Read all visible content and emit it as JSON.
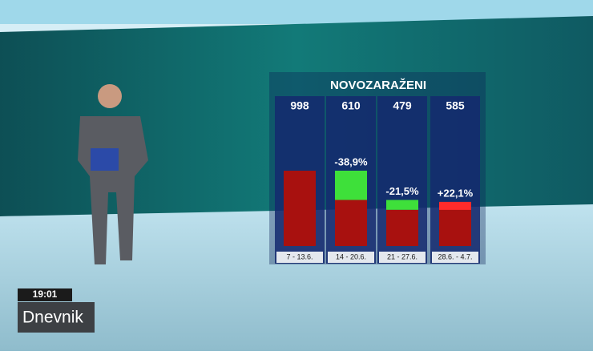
{
  "chart_data": {
    "type": "bar",
    "title": "NOVOZARAŽENI",
    "categories": [
      "7 - 13.6.",
      "14 - 20.6.",
      "21 - 27.6.",
      "28.6. - 4.7."
    ],
    "values": [
      998,
      610,
      479,
      585
    ],
    "changes": [
      null,
      -38.9,
      -21.5,
      22.1
    ],
    "change_labels": [
      null,
      "-38,9%",
      "-21,5%",
      "+22,1%"
    ],
    "color": "#a8110f",
    "decrease_color": "#3ee03a",
    "increase_color": "#ff2b2b"
  },
  "overlay": {
    "time": "19:01",
    "show": "Dnevnik"
  }
}
